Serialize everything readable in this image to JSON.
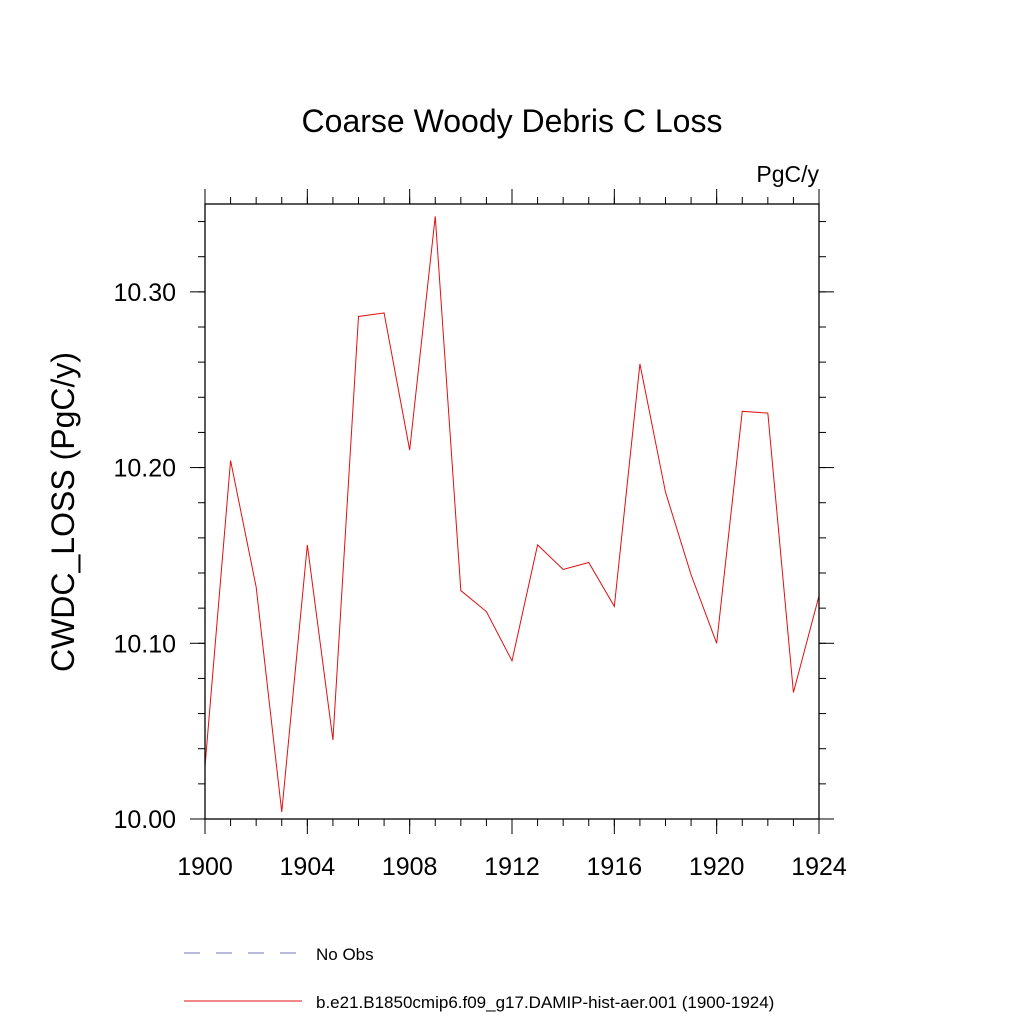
{
  "chart_data": {
    "type": "line",
    "title": "Coarse Woody Debris C Loss",
    "units_label": "PgC/y",
    "ylabel": "CWDC_LOSS  (PgC/y)",
    "xlabel": "",
    "xlim": [
      1900,
      1924
    ],
    "ylim": [
      10.0,
      10.35
    ],
    "x_major_ticks": [
      1900,
      1904,
      1908,
      1912,
      1916,
      1920,
      1924
    ],
    "x_tick_labels": [
      "1900",
      "1904",
      "1908",
      "1912",
      "1916",
      "1920",
      "1924"
    ],
    "x_minor_step": 1,
    "y_major_ticks": [
      10.0,
      10.1,
      10.2,
      10.3
    ],
    "y_tick_labels": [
      "10.00",
      "10.10",
      "10.20",
      "10.30"
    ],
    "y_minor_step": 0.02,
    "grid": false,
    "legend_position": "bottom",
    "series": [
      {
        "name": "No Obs",
        "color": "#7070c0",
        "dash": "dashed",
        "x": [],
        "values": []
      },
      {
        "name": "b.e21.B1850cmip6.f09_g17.DAMIP-hist-aer.001 (1900-1924)",
        "color": "#e01010",
        "dash": "solid",
        "x": [
          1900,
          1901,
          1902,
          1903,
          1904,
          1905,
          1906,
          1907,
          1908,
          1909,
          1910,
          1911,
          1912,
          1913,
          1914,
          1915,
          1916,
          1917,
          1918,
          1919,
          1920,
          1921,
          1922,
          1923,
          1924
        ],
        "values": [
          10.03,
          10.204,
          10.132,
          10.004,
          10.156,
          10.045,
          10.286,
          10.288,
          10.21,
          10.343,
          10.13,
          10.118,
          10.09,
          10.156,
          10.142,
          10.146,
          10.121,
          10.259,
          10.186,
          10.139,
          10.1,
          10.232,
          10.231,
          10.072,
          10.127
        ]
      }
    ]
  }
}
